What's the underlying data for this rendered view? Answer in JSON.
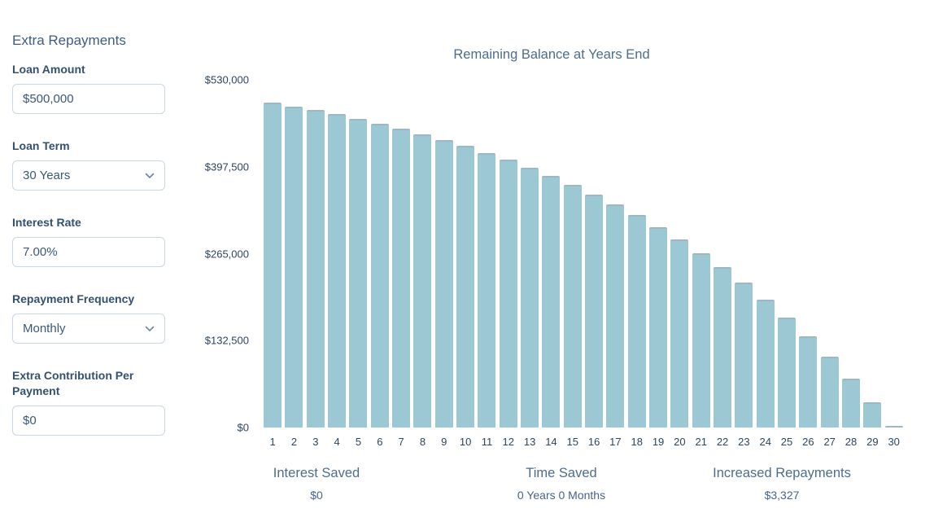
{
  "sidebar": {
    "heading": "Extra Repayments",
    "fields": [
      {
        "label": "Loan Amount",
        "value": "$500,000",
        "type": "input"
      },
      {
        "label": "Loan Term",
        "value": "30 Years",
        "type": "select"
      },
      {
        "label": "Interest Rate",
        "value": "7.00%",
        "type": "input"
      },
      {
        "label": "Repayment Frequency",
        "value": "Monthly",
        "type": "select"
      },
      {
        "label": "Extra Contribution Per Payment",
        "value": "$0",
        "type": "input"
      }
    ]
  },
  "chart_data": {
    "type": "bar",
    "title": "Remaining Balance at Years End",
    "xlabel": "",
    "ylabel": "",
    "categories": [
      1,
      2,
      3,
      4,
      5,
      6,
      7,
      8,
      9,
      10,
      11,
      12,
      13,
      14,
      15,
      16,
      17,
      18,
      19,
      20,
      21,
      22,
      23,
      24,
      25,
      26,
      27,
      28,
      29,
      30
    ],
    "values": [
      494921,
      489476,
      483632,
      477375,
      470658,
      463467,
      455737,
      447457,
      438579,
      429062,
      418853,
      407908,
      396171,
      383586,
      370089,
      355616,
      340104,
      323467,
      305628,
      286500,
      265986,
      243990,
      220405,
      195112,
      167990,
      138908,
      107716,
      74289,
      38443,
      0
    ],
    "y_ticks": [
      "$530,000",
      "$397,500",
      "$265,000",
      "$132,500",
      "$0"
    ],
    "ylim": [
      0,
      530000
    ],
    "grid": false,
    "legend": false,
    "bar_color": "#9CC8D3",
    "bar_cap_color": "#9FB7C1"
  },
  "stats": [
    {
      "label": "Interest Saved",
      "value": "$0"
    },
    {
      "label": "Time Saved",
      "value": "0 Years 0 Months"
    },
    {
      "label": "Increased Repayments",
      "value": "$3,327"
    }
  ],
  "colors": {
    "accent_text": "#3E5C80",
    "label_text": "#33516F",
    "input_border": "#C9D7E8",
    "tick_text": "#2C4560",
    "title_text": "#4C6D8C"
  }
}
